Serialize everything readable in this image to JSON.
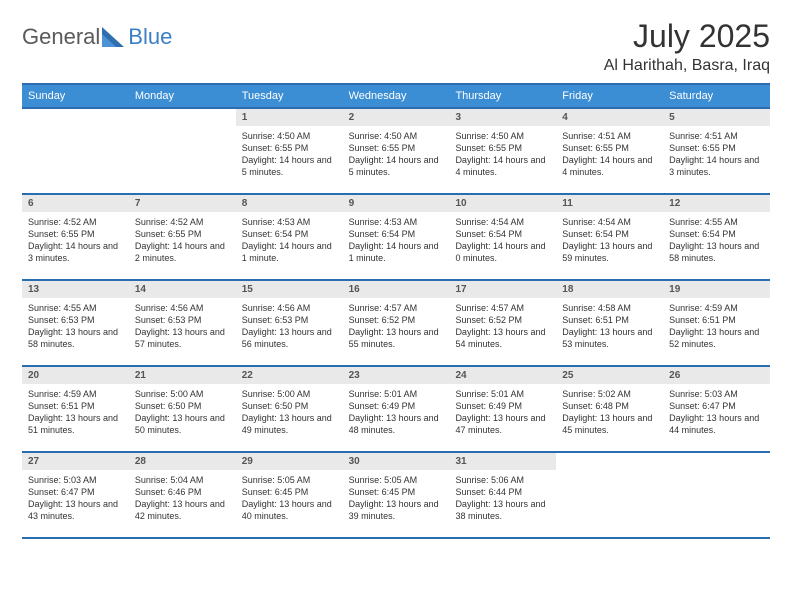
{
  "brand": {
    "text_general": "General",
    "text_blue": "Blue",
    "general_color": "#5a5a5a",
    "blue_color": "#3b7fc4"
  },
  "header": {
    "month_title": "July 2025",
    "location": "Al Harithah, Basra, Iraq"
  },
  "style": {
    "header_bg": "#3b8dd4",
    "header_fg": "#ffffff",
    "border_color": "#2a6db0",
    "daynum_bg": "#e9e9e9",
    "daynum_fg": "#555555",
    "body_fg": "#333333",
    "page_bg": "#ffffff",
    "font_family": "Arial",
    "month_title_fontsize": 32,
    "location_fontsize": 16,
    "weekday_fontsize": 11,
    "daynum_fontsize": 10,
    "body_fontsize": 9
  },
  "weekdays": [
    "Sunday",
    "Monday",
    "Tuesday",
    "Wednesday",
    "Thursday",
    "Friday",
    "Saturday"
  ],
  "weeks": [
    [
      {
        "empty": true
      },
      {
        "empty": true
      },
      {
        "num": "1",
        "sunrise": "Sunrise: 4:50 AM",
        "sunset": "Sunset: 6:55 PM",
        "daylight": "Daylight: 14 hours and 5 minutes."
      },
      {
        "num": "2",
        "sunrise": "Sunrise: 4:50 AM",
        "sunset": "Sunset: 6:55 PM",
        "daylight": "Daylight: 14 hours and 5 minutes."
      },
      {
        "num": "3",
        "sunrise": "Sunrise: 4:50 AM",
        "sunset": "Sunset: 6:55 PM",
        "daylight": "Daylight: 14 hours and 4 minutes."
      },
      {
        "num": "4",
        "sunrise": "Sunrise: 4:51 AM",
        "sunset": "Sunset: 6:55 PM",
        "daylight": "Daylight: 14 hours and 4 minutes."
      },
      {
        "num": "5",
        "sunrise": "Sunrise: 4:51 AM",
        "sunset": "Sunset: 6:55 PM",
        "daylight": "Daylight: 14 hours and 3 minutes."
      }
    ],
    [
      {
        "num": "6",
        "sunrise": "Sunrise: 4:52 AM",
        "sunset": "Sunset: 6:55 PM",
        "daylight": "Daylight: 14 hours and 3 minutes."
      },
      {
        "num": "7",
        "sunrise": "Sunrise: 4:52 AM",
        "sunset": "Sunset: 6:55 PM",
        "daylight": "Daylight: 14 hours and 2 minutes."
      },
      {
        "num": "8",
        "sunrise": "Sunrise: 4:53 AM",
        "sunset": "Sunset: 6:54 PM",
        "daylight": "Daylight: 14 hours and 1 minute."
      },
      {
        "num": "9",
        "sunrise": "Sunrise: 4:53 AM",
        "sunset": "Sunset: 6:54 PM",
        "daylight": "Daylight: 14 hours and 1 minute."
      },
      {
        "num": "10",
        "sunrise": "Sunrise: 4:54 AM",
        "sunset": "Sunset: 6:54 PM",
        "daylight": "Daylight: 14 hours and 0 minutes."
      },
      {
        "num": "11",
        "sunrise": "Sunrise: 4:54 AM",
        "sunset": "Sunset: 6:54 PM",
        "daylight": "Daylight: 13 hours and 59 minutes."
      },
      {
        "num": "12",
        "sunrise": "Sunrise: 4:55 AM",
        "sunset": "Sunset: 6:54 PM",
        "daylight": "Daylight: 13 hours and 58 minutes."
      }
    ],
    [
      {
        "num": "13",
        "sunrise": "Sunrise: 4:55 AM",
        "sunset": "Sunset: 6:53 PM",
        "daylight": "Daylight: 13 hours and 58 minutes."
      },
      {
        "num": "14",
        "sunrise": "Sunrise: 4:56 AM",
        "sunset": "Sunset: 6:53 PM",
        "daylight": "Daylight: 13 hours and 57 minutes."
      },
      {
        "num": "15",
        "sunrise": "Sunrise: 4:56 AM",
        "sunset": "Sunset: 6:53 PM",
        "daylight": "Daylight: 13 hours and 56 minutes."
      },
      {
        "num": "16",
        "sunrise": "Sunrise: 4:57 AM",
        "sunset": "Sunset: 6:52 PM",
        "daylight": "Daylight: 13 hours and 55 minutes."
      },
      {
        "num": "17",
        "sunrise": "Sunrise: 4:57 AM",
        "sunset": "Sunset: 6:52 PM",
        "daylight": "Daylight: 13 hours and 54 minutes."
      },
      {
        "num": "18",
        "sunrise": "Sunrise: 4:58 AM",
        "sunset": "Sunset: 6:51 PM",
        "daylight": "Daylight: 13 hours and 53 minutes."
      },
      {
        "num": "19",
        "sunrise": "Sunrise: 4:59 AM",
        "sunset": "Sunset: 6:51 PM",
        "daylight": "Daylight: 13 hours and 52 minutes."
      }
    ],
    [
      {
        "num": "20",
        "sunrise": "Sunrise: 4:59 AM",
        "sunset": "Sunset: 6:51 PM",
        "daylight": "Daylight: 13 hours and 51 minutes."
      },
      {
        "num": "21",
        "sunrise": "Sunrise: 5:00 AM",
        "sunset": "Sunset: 6:50 PM",
        "daylight": "Daylight: 13 hours and 50 minutes."
      },
      {
        "num": "22",
        "sunrise": "Sunrise: 5:00 AM",
        "sunset": "Sunset: 6:50 PM",
        "daylight": "Daylight: 13 hours and 49 minutes."
      },
      {
        "num": "23",
        "sunrise": "Sunrise: 5:01 AM",
        "sunset": "Sunset: 6:49 PM",
        "daylight": "Daylight: 13 hours and 48 minutes."
      },
      {
        "num": "24",
        "sunrise": "Sunrise: 5:01 AM",
        "sunset": "Sunset: 6:49 PM",
        "daylight": "Daylight: 13 hours and 47 minutes."
      },
      {
        "num": "25",
        "sunrise": "Sunrise: 5:02 AM",
        "sunset": "Sunset: 6:48 PM",
        "daylight": "Daylight: 13 hours and 45 minutes."
      },
      {
        "num": "26",
        "sunrise": "Sunrise: 5:03 AM",
        "sunset": "Sunset: 6:47 PM",
        "daylight": "Daylight: 13 hours and 44 minutes."
      }
    ],
    [
      {
        "num": "27",
        "sunrise": "Sunrise: 5:03 AM",
        "sunset": "Sunset: 6:47 PM",
        "daylight": "Daylight: 13 hours and 43 minutes."
      },
      {
        "num": "28",
        "sunrise": "Sunrise: 5:04 AM",
        "sunset": "Sunset: 6:46 PM",
        "daylight": "Daylight: 13 hours and 42 minutes."
      },
      {
        "num": "29",
        "sunrise": "Sunrise: 5:05 AM",
        "sunset": "Sunset: 6:45 PM",
        "daylight": "Daylight: 13 hours and 40 minutes."
      },
      {
        "num": "30",
        "sunrise": "Sunrise: 5:05 AM",
        "sunset": "Sunset: 6:45 PM",
        "daylight": "Daylight: 13 hours and 39 minutes."
      },
      {
        "num": "31",
        "sunrise": "Sunrise: 5:06 AM",
        "sunset": "Sunset: 6:44 PM",
        "daylight": "Daylight: 13 hours and 38 minutes."
      },
      {
        "empty": true
      },
      {
        "empty": true
      }
    ]
  ]
}
